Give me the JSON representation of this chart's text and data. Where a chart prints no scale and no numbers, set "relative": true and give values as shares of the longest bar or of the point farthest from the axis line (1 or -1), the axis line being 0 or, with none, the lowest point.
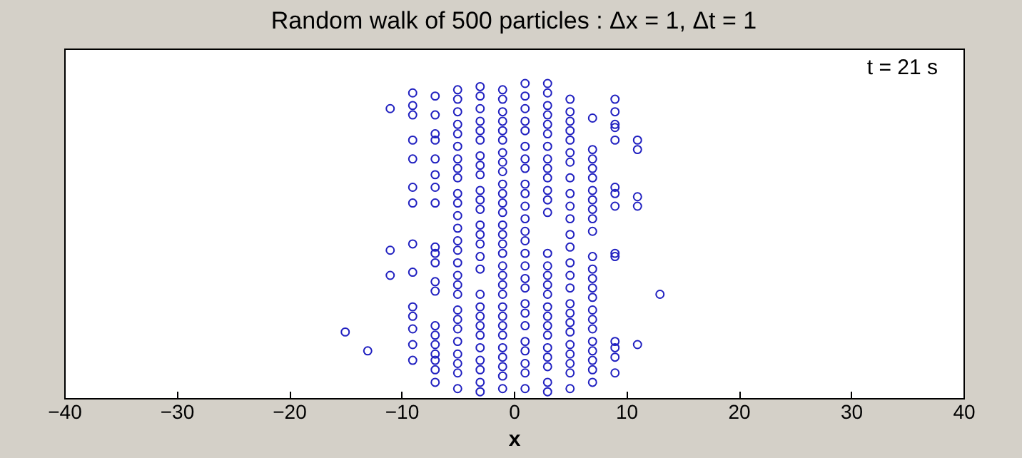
{
  "chart_data": {
    "type": "scatter",
    "title": "Random walk of 500 particles : Δx = 1, Δt = 1",
    "xlabel": "x",
    "annotations": [
      "t = 21 s"
    ],
    "relative": true,
    "marker": "circle",
    "xlim": [
      -40,
      40
    ],
    "xticks": [
      -40,
      -30,
      -20,
      -10,
      0,
      10,
      20,
      30,
      40
    ],
    "series": [
      {
        "color": "#2020c0",
        "x": [
          -15
        ],
        "values": [
          0.21
        ]
      },
      {
        "color": "#2020c0",
        "x": [
          -13
        ],
        "values": [
          0.15
        ]
      },
      {
        "color": "#2020c0",
        "x": [
          -11,
          -11,
          -11
        ],
        "values": [
          0.92,
          0.47,
          0.39
        ]
      },
      {
        "color": "#2020c0",
        "x": [
          -9,
          -9,
          -9,
          -9,
          -9,
          -9,
          -9,
          -9,
          -9,
          -9,
          -9,
          -9,
          -9,
          -9
        ],
        "values": [
          0.97,
          0.93,
          0.9,
          0.82,
          0.76,
          0.67,
          0.62,
          0.49,
          0.4,
          0.29,
          0.26,
          0.22,
          0.17,
          0.12
        ]
      },
      {
        "color": "#2020c0",
        "x": [
          -7,
          -7,
          -7,
          -7,
          -7,
          -7,
          -7,
          -7,
          -7,
          -7,
          -7,
          -7,
          -7,
          -7,
          -7,
          -7,
          -7,
          -7,
          -7,
          -7
        ],
        "values": [
          0.96,
          0.9,
          0.84,
          0.82,
          0.76,
          0.71,
          0.67,
          0.62,
          0.48,
          0.46,
          0.43,
          0.37,
          0.34,
          0.23,
          0.2,
          0.17,
          0.14,
          0.12,
          0.09,
          0.05
        ]
      },
      {
        "color": "#2020c0",
        "x": [
          -5,
          -5,
          -5,
          -5,
          -5,
          -5,
          -5,
          -5,
          -5,
          -5,
          -5,
          -5,
          -5,
          -5,
          -5,
          -5,
          -5,
          -5,
          -5,
          -5,
          -5,
          -5,
          -5,
          -5,
          -5,
          -5,
          -5
        ],
        "values": [
          0.98,
          0.95,
          0.91,
          0.87,
          0.84,
          0.8,
          0.76,
          0.73,
          0.7,
          0.65,
          0.62,
          0.58,
          0.54,
          0.5,
          0.47,
          0.43,
          0.39,
          0.36,
          0.33,
          0.28,
          0.25,
          0.22,
          0.18,
          0.14,
          0.11,
          0.08,
          0.03
        ]
      },
      {
        "color": "#2020c0",
        "x": [
          -3,
          -3,
          -3,
          -3,
          -3,
          -3,
          -3,
          -3,
          -3,
          -3,
          -3,
          -3,
          -3,
          -3,
          -3,
          -3,
          -3,
          -3,
          -3,
          -3,
          -3,
          -3,
          -3,
          -3,
          -3,
          -3,
          -3
        ],
        "values": [
          0.99,
          0.96,
          0.92,
          0.88,
          0.85,
          0.82,
          0.77,
          0.74,
          0.71,
          0.66,
          0.63,
          0.6,
          0.55,
          0.52,
          0.49,
          0.45,
          0.41,
          0.33,
          0.29,
          0.26,
          0.23,
          0.2,
          0.16,
          0.12,
          0.09,
          0.05,
          0.02
        ]
      },
      {
        "color": "#2020c0",
        "x": [
          -1,
          -1,
          -1,
          -1,
          -1,
          -1,
          -1,
          -1,
          -1,
          -1,
          -1,
          -1,
          -1,
          -1,
          -1,
          -1,
          -1,
          -1,
          -1,
          -1,
          -1,
          -1,
          -1,
          -1,
          -1,
          -1,
          -1,
          -1,
          -1,
          -1
        ],
        "values": [
          0.98,
          0.95,
          0.91,
          0.88,
          0.85,
          0.82,
          0.78,
          0.75,
          0.72,
          0.68,
          0.65,
          0.62,
          0.59,
          0.55,
          0.52,
          0.49,
          0.46,
          0.42,
          0.39,
          0.36,
          0.33,
          0.29,
          0.26,
          0.23,
          0.2,
          0.16,
          0.13,
          0.1,
          0.07,
          0.03
        ]
      },
      {
        "color": "#2020c0",
        "x": [
          1,
          1,
          1,
          1,
          1,
          1,
          1,
          1,
          1,
          1,
          1,
          1,
          1,
          1,
          1,
          1,
          1,
          1,
          1,
          1,
          1,
          1,
          1,
          1,
          1,
          1
        ],
        "values": [
          1,
          0.96,
          0.92,
          0.88,
          0.85,
          0.8,
          0.76,
          0.73,
          0.68,
          0.65,
          0.61,
          0.57,
          0.53,
          0.5,
          0.46,
          0.42,
          0.38,
          0.35,
          0.3,
          0.27,
          0.23,
          0.18,
          0.15,
          0.11,
          0.08,
          0.03
        ]
      },
      {
        "color": "#2020c0",
        "x": [
          3,
          3,
          3,
          3,
          3,
          3,
          3,
          3,
          3,
          3,
          3,
          3,
          3,
          3,
          3,
          3,
          3,
          3,
          3,
          3,
          3,
          3,
          3,
          3,
          3,
          3,
          3
        ],
        "values": [
          1,
          0.97,
          0.93,
          0.9,
          0.87,
          0.84,
          0.8,
          0.76,
          0.73,
          0.7,
          0.66,
          0.63,
          0.59,
          0.46,
          0.42,
          0.39,
          0.36,
          0.33,
          0.29,
          0.26,
          0.23,
          0.2,
          0.16,
          0.13,
          0.1,
          0.05,
          0.02
        ]
      },
      {
        "color": "#2020c0",
        "x": [
          5,
          5,
          5,
          5,
          5,
          5,
          5,
          5,
          5,
          5,
          5,
          5,
          5,
          5,
          5,
          5,
          5,
          5,
          5,
          5,
          5,
          5,
          5,
          5,
          5
        ],
        "values": [
          0.95,
          0.91,
          0.88,
          0.85,
          0.82,
          0.78,
          0.75,
          0.7,
          0.65,
          0.61,
          0.57,
          0.52,
          0.48,
          0.43,
          0.39,
          0.35,
          0.3,
          0.27,
          0.24,
          0.21,
          0.17,
          0.14,
          0.11,
          0.08,
          0.03
        ]
      },
      {
        "color": "#2020c0",
        "x": [
          7,
          7,
          7,
          7,
          7,
          7,
          7,
          7,
          7,
          7,
          7,
          7,
          7,
          7,
          7,
          7,
          7,
          7,
          7,
          7,
          7,
          7,
          7
        ],
        "values": [
          0.89,
          0.79,
          0.76,
          0.73,
          0.7,
          0.66,
          0.63,
          0.6,
          0.57,
          0.53,
          0.45,
          0.41,
          0.38,
          0.35,
          0.32,
          0.28,
          0.25,
          0.22,
          0.18,
          0.15,
          0.12,
          0.09,
          0.05
        ]
      },
      {
        "color": "#2020c0",
        "x": [
          9,
          9,
          9,
          9,
          9,
          9,
          9,
          9,
          9,
          9,
          9,
          9,
          9,
          9
        ],
        "values": [
          0.95,
          0.91,
          0.87,
          0.86,
          0.82,
          0.67,
          0.65,
          0.61,
          0.46,
          0.45,
          0.18,
          0.16,
          0.13,
          0.08
        ]
      },
      {
        "color": "#2020c0",
        "x": [
          11,
          11,
          11,
          11,
          11
        ],
        "values": [
          0.82,
          0.79,
          0.64,
          0.61,
          0.17
        ]
      },
      {
        "color": "#2020c0",
        "x": [
          13
        ],
        "values": [
          0.33
        ]
      }
    ]
  }
}
